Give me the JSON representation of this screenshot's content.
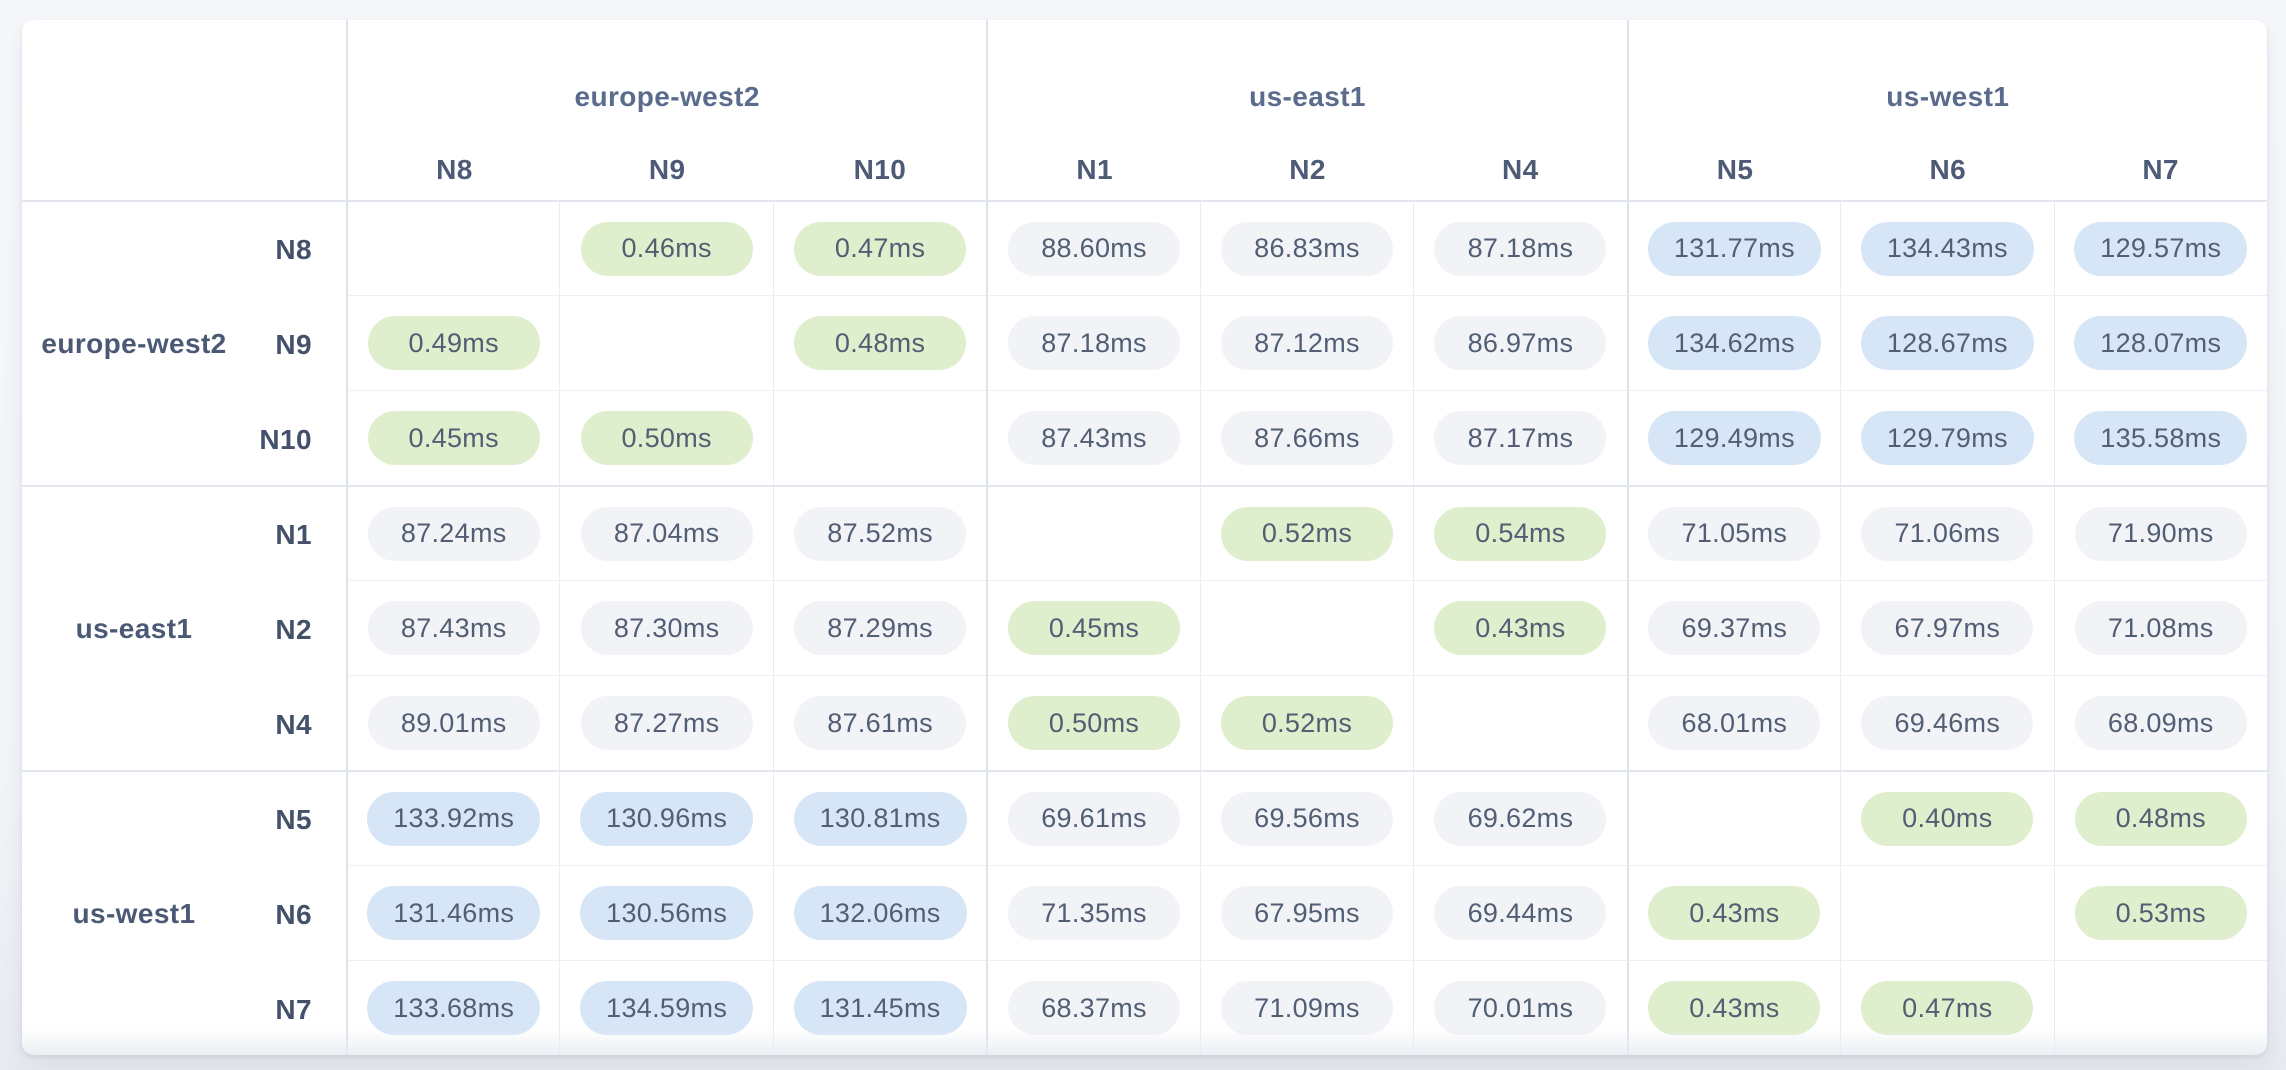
{
  "matrix": {
    "unit_suffix": "ms",
    "regions": [
      {
        "name": "europe-west2",
        "nodes": [
          "N8",
          "N9",
          "N10"
        ]
      },
      {
        "name": "us-east1",
        "nodes": [
          "N1",
          "N2",
          "N4"
        ]
      },
      {
        "name": "us-west1",
        "nodes": [
          "N5",
          "N6",
          "N7"
        ]
      }
    ],
    "column_order": [
      "N8",
      "N9",
      "N10",
      "N1",
      "N2",
      "N4",
      "N5",
      "N6",
      "N7"
    ],
    "rows": [
      {
        "region": "europe-west2",
        "node": "N8",
        "values": [
          null,
          "0.46ms",
          "0.47ms",
          "88.60ms",
          "86.83ms",
          "87.18ms",
          "131.77ms",
          "134.43ms",
          "129.57ms"
        ]
      },
      {
        "region": "europe-west2",
        "node": "N9",
        "values": [
          "0.49ms",
          null,
          "0.48ms",
          "87.18ms",
          "87.12ms",
          "86.97ms",
          "134.62ms",
          "128.67ms",
          "128.07ms"
        ]
      },
      {
        "region": "europe-west2",
        "node": "N10",
        "values": [
          "0.45ms",
          "0.50ms",
          null,
          "87.43ms",
          "87.66ms",
          "87.17ms",
          "129.49ms",
          "129.79ms",
          "135.58ms"
        ]
      },
      {
        "region": "us-east1",
        "node": "N1",
        "values": [
          "87.24ms",
          "87.04ms",
          "87.52ms",
          null,
          "0.52ms",
          "0.54ms",
          "71.05ms",
          "71.06ms",
          "71.90ms"
        ]
      },
      {
        "region": "us-east1",
        "node": "N2",
        "values": [
          "87.43ms",
          "87.30ms",
          "87.29ms",
          "0.45ms",
          null,
          "0.43ms",
          "69.37ms",
          "67.97ms",
          "71.08ms"
        ]
      },
      {
        "region": "us-east1",
        "node": "N4",
        "values": [
          "89.01ms",
          "87.27ms",
          "87.61ms",
          "0.50ms",
          "0.52ms",
          null,
          "68.01ms",
          "69.46ms",
          "68.09ms"
        ]
      },
      {
        "region": "us-west1",
        "node": "N5",
        "values": [
          "133.92ms",
          "130.96ms",
          "130.81ms",
          "69.61ms",
          "69.56ms",
          "69.62ms",
          null,
          "0.40ms",
          "0.48ms"
        ]
      },
      {
        "region": "us-west1",
        "node": "N6",
        "values": [
          "131.46ms",
          "130.56ms",
          "132.06ms",
          "71.35ms",
          "67.95ms",
          "69.44ms",
          "0.43ms",
          null,
          "0.53ms"
        ]
      },
      {
        "region": "us-west1",
        "node": "N7",
        "values": [
          "133.68ms",
          "134.59ms",
          "131.45ms",
          "68.37ms",
          "71.09ms",
          "70.01ms",
          "0.43ms",
          "0.47ms",
          null
        ]
      }
    ],
    "level_thresholds": {
      "low_below_ms": 1,
      "high_at_or_above_ms": 100
    }
  },
  "colors": {
    "low_latency_pill": "#dfeecd",
    "mid_latency_pill": "#f1f3f7",
    "high_latency_pill": "#d7e6f7",
    "pill_text": "#525e73",
    "column_region_text": "#5a6b8c",
    "node_label_text": "#4d5b76",
    "card_background": "#ffffff",
    "page_background": "#f5f7fa"
  }
}
